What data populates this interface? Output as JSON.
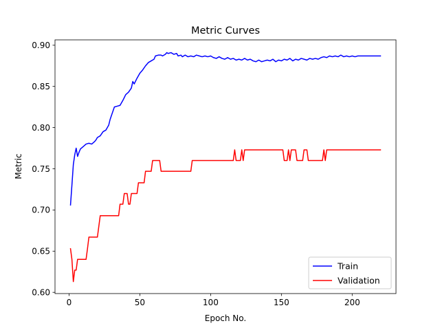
{
  "chart_data": {
    "type": "line",
    "title": "Metric Curves",
    "xlabel": "Epoch No.",
    "ylabel": "Metric",
    "xlim": [
      -9.95,
      230.95
    ],
    "ylim": [
      0.5985,
      0.9065
    ],
    "xticks": [
      0,
      50,
      100,
      150,
      200
    ],
    "yticks": [
      0.6,
      0.65,
      0.7,
      0.75,
      0.8,
      0.85,
      0.9
    ],
    "xtick_labels": [
      "0",
      "50",
      "100",
      "150",
      "200"
    ],
    "ytick_labels": [
      "0.60",
      "0.65",
      "0.70",
      "0.75",
      "0.80",
      "0.85",
      "0.90"
    ],
    "grid": false,
    "legend_position": "bottom-right",
    "series": [
      {
        "name": "Train",
        "color": "#0000ff",
        "points": [
          [
            1,
            0.706
          ],
          [
            2,
            0.73
          ],
          [
            3,
            0.755
          ],
          [
            4,
            0.767
          ],
          [
            5,
            0.775
          ],
          [
            6,
            0.765
          ],
          [
            7,
            0.77
          ],
          [
            8,
            0.774
          ],
          [
            10,
            0.777
          ],
          [
            12,
            0.78
          ],
          [
            14,
            0.781
          ],
          [
            16,
            0.78
          ],
          [
            18,
            0.783
          ],
          [
            19,
            0.785
          ],
          [
            20,
            0.788
          ],
          [
            22,
            0.79
          ],
          [
            24,
            0.795
          ],
          [
            26,
            0.797
          ],
          [
            28,
            0.803
          ],
          [
            29,
            0.81
          ],
          [
            30,
            0.815
          ],
          [
            32,
            0.825
          ],
          [
            34,
            0.826
          ],
          [
            36,
            0.827
          ],
          [
            38,
            0.833
          ],
          [
            40,
            0.84
          ],
          [
            42,
            0.843
          ],
          [
            44,
            0.848
          ],
          [
            45,
            0.856
          ],
          [
            46,
            0.853
          ],
          [
            48,
            0.86
          ],
          [
            50,
            0.866
          ],
          [
            52,
            0.87
          ],
          [
            54,
            0.875
          ],
          [
            56,
            0.879
          ],
          [
            58,
            0.881
          ],
          [
            60,
            0.883
          ],
          [
            61,
            0.887
          ],
          [
            63,
            0.888
          ],
          [
            65,
            0.888
          ],
          [
            66,
            0.887
          ],
          [
            68,
            0.889
          ],
          [
            69,
            0.891
          ],
          [
            70,
            0.89
          ],
          [
            72,
            0.891
          ],
          [
            74,
            0.889
          ],
          [
            76,
            0.89
          ],
          [
            77,
            0.887
          ],
          [
            79,
            0.888
          ],
          [
            80,
            0.886
          ],
          [
            82,
            0.888
          ],
          [
            84,
            0.886
          ],
          [
            86,
            0.887
          ],
          [
            88,
            0.886
          ],
          [
            90,
            0.888
          ],
          [
            92,
            0.887
          ],
          [
            94,
            0.886
          ],
          [
            96,
            0.887
          ],
          [
            98,
            0.886
          ],
          [
            100,
            0.887
          ],
          [
            102,
            0.885
          ],
          [
            104,
            0.884
          ],
          [
            106,
            0.886
          ],
          [
            108,
            0.884
          ],
          [
            110,
            0.883
          ],
          [
            112,
            0.885
          ],
          [
            114,
            0.883
          ],
          [
            116,
            0.884
          ],
          [
            118,
            0.882
          ],
          [
            120,
            0.883
          ],
          [
            122,
            0.882
          ],
          [
            124,
            0.884
          ],
          [
            126,
            0.882
          ],
          [
            128,
            0.883
          ],
          [
            130,
            0.881
          ],
          [
            132,
            0.88
          ],
          [
            134,
            0.882
          ],
          [
            136,
            0.88
          ],
          [
            138,
            0.881
          ],
          [
            140,
            0.882
          ],
          [
            142,
            0.881
          ],
          [
            144,
            0.883
          ],
          [
            146,
            0.88
          ],
          [
            148,
            0.882
          ],
          [
            150,
            0.881
          ],
          [
            152,
            0.883
          ],
          [
            154,
            0.882
          ],
          [
            156,
            0.884
          ],
          [
            158,
            0.881
          ],
          [
            160,
            0.883
          ],
          [
            162,
            0.882
          ],
          [
            164,
            0.884
          ],
          [
            166,
            0.883
          ],
          [
            168,
            0.882
          ],
          [
            170,
            0.884
          ],
          [
            172,
            0.883
          ],
          [
            174,
            0.884
          ],
          [
            176,
            0.883
          ],
          [
            178,
            0.885
          ],
          [
            180,
            0.886
          ],
          [
            182,
            0.885
          ],
          [
            184,
            0.887
          ],
          [
            186,
            0.886
          ],
          [
            188,
            0.887
          ],
          [
            190,
            0.886
          ],
          [
            192,
            0.888
          ],
          [
            194,
            0.886
          ],
          [
            196,
            0.887
          ],
          [
            198,
            0.886
          ],
          [
            200,
            0.887
          ],
          [
            202,
            0.886
          ],
          [
            204,
            0.887
          ],
          [
            206,
            0.887
          ],
          [
            208,
            0.887
          ],
          [
            212,
            0.887
          ],
          [
            216,
            0.887
          ],
          [
            220,
            0.887
          ]
        ]
      },
      {
        "name": "Validation",
        "color": "#ff0000",
        "points": [
          [
            1,
            0.653
          ],
          [
            2,
            0.64
          ],
          [
            3,
            0.613
          ],
          [
            4,
            0.627
          ],
          [
            5,
            0.627
          ],
          [
            6,
            0.64
          ],
          [
            12,
            0.64
          ],
          [
            13,
            0.653
          ],
          [
            14,
            0.667
          ],
          [
            20,
            0.667
          ],
          [
            21,
            0.68
          ],
          [
            22,
            0.693
          ],
          [
            35,
            0.693
          ],
          [
            36,
            0.707
          ],
          [
            38,
            0.707
          ],
          [
            39,
            0.72
          ],
          [
            41,
            0.72
          ],
          [
            42,
            0.707
          ],
          [
            43,
            0.707
          ],
          [
            44,
            0.72
          ],
          [
            48,
            0.72
          ],
          [
            49,
            0.733
          ],
          [
            53,
            0.733
          ],
          [
            54,
            0.747
          ],
          [
            58,
            0.747
          ],
          [
            59,
            0.76
          ],
          [
            64,
            0.76
          ],
          [
            65,
            0.747
          ],
          [
            86,
            0.747
          ],
          [
            87,
            0.76
          ],
          [
            116,
            0.76
          ],
          [
            117,
            0.773
          ],
          [
            118,
            0.76
          ],
          [
            121,
            0.76
          ],
          [
            122,
            0.773
          ],
          [
            123,
            0.76
          ],
          [
            124,
            0.773
          ],
          [
            151,
            0.773
          ],
          [
            152,
            0.76
          ],
          [
            154,
            0.76
          ],
          [
            155,
            0.773
          ],
          [
            156,
            0.76
          ],
          [
            157,
            0.773
          ],
          [
            160,
            0.773
          ],
          [
            161,
            0.76
          ],
          [
            165,
            0.76
          ],
          [
            166,
            0.773
          ],
          [
            168,
            0.773
          ],
          [
            169,
            0.76
          ],
          [
            179,
            0.76
          ],
          [
            180,
            0.773
          ],
          [
            181,
            0.76
          ],
          [
            182,
            0.773
          ],
          [
            220,
            0.773
          ]
        ]
      }
    ]
  }
}
